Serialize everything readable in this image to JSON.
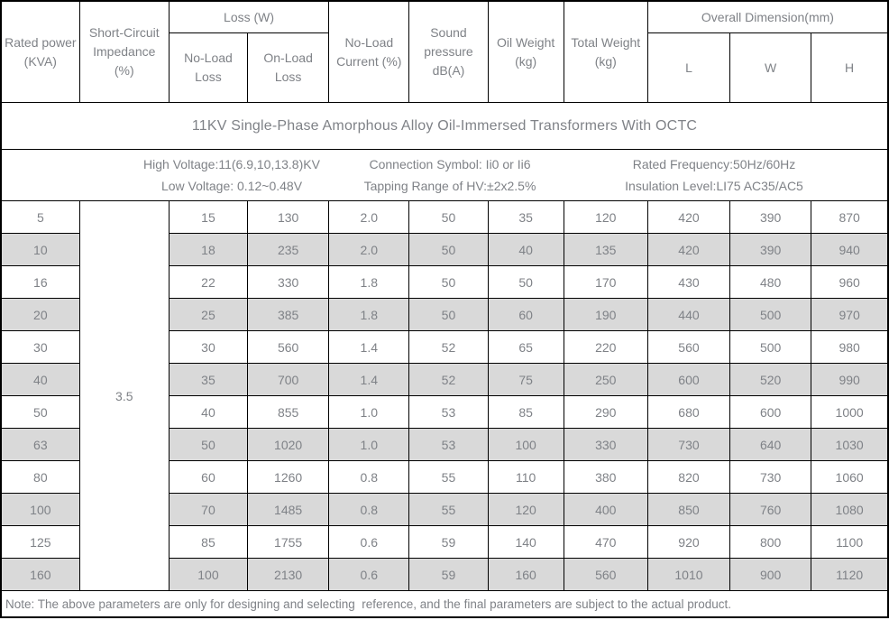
{
  "title": "11KV Single-Phase Amorphous Alloy Oil-Immersed Transformers With OCTC",
  "specs": [
    {
      "lines": [
        "High Voltage:11(6.9,10,13.8)KV",
        "Low Voltage: 0.12~0.48V"
      ]
    },
    {
      "lines": [
        "Connection Symbol: Ii0 or Ii6",
        "Tapping Range of HV:±2x2.5%"
      ]
    },
    {
      "lines": [
        "Rated Frequency:50Hz/60Hz",
        "Insulation Level:LI75 AC35/AC5"
      ]
    }
  ],
  "table": {
    "headers": {
      "rated_power": "Rated power (KVA)",
      "short_circuit": "Short-Circuit Impedance (%)",
      "loss_group": "Loss (W)",
      "no_load_loss": "No-Load Loss",
      "on_load_loss": "On-Load Loss",
      "no_load_current": "No-Load Current (%)",
      "sound_pressure": "Sound pressure dB(A)",
      "oil_weight": "Oil Weight (kg)",
      "total_weight": "Total Weight (kg)",
      "overall_group": "Overall Dimension(mm)",
      "dim_l": "L",
      "dim_w": "W",
      "dim_h": "H"
    },
    "impedance": "3.5",
    "rows": [
      [
        "5",
        "15",
        "130",
        "2.0",
        "50",
        "35",
        "120",
        "420",
        "390",
        "870"
      ],
      [
        "10",
        "18",
        "235",
        "2.0",
        "50",
        "40",
        "135",
        "420",
        "390",
        "940"
      ],
      [
        "16",
        "22",
        "330",
        "1.8",
        "50",
        "50",
        "170",
        "430",
        "480",
        "960"
      ],
      [
        "20",
        "25",
        "385",
        "1.8",
        "50",
        "60",
        "190",
        "440",
        "500",
        "970"
      ],
      [
        "30",
        "30",
        "560",
        "1.4",
        "52",
        "65",
        "220",
        "560",
        "500",
        "980"
      ],
      [
        "40",
        "35",
        "700",
        "1.4",
        "52",
        "75",
        "250",
        "600",
        "520",
        "990"
      ],
      [
        "50",
        "40",
        "855",
        "1.0",
        "53",
        "85",
        "290",
        "680",
        "600",
        "1000"
      ],
      [
        "63",
        "50",
        "1020",
        "1.0",
        "53",
        "100",
        "330",
        "730",
        "640",
        "1030"
      ],
      [
        "80",
        "60",
        "1260",
        "0.8",
        "55",
        "110",
        "380",
        "820",
        "730",
        "1060"
      ],
      [
        "100",
        "70",
        "1485",
        "0.8",
        "55",
        "120",
        "400",
        "850",
        "760",
        "1080"
      ],
      [
        "125",
        "85",
        "1755",
        "0.6",
        "59",
        "140",
        "470",
        "920",
        "800",
        "1100"
      ],
      [
        "160",
        "100",
        "2130",
        "0.6",
        "59",
        "160",
        "560",
        "1010",
        "900",
        "1120"
      ]
    ]
  },
  "note": "Note: The above parameters are only for designing and selecting  reference, and the final parameters are subject to the actual product.",
  "colors": {
    "border": "#000000",
    "text_gray": "#7f8287",
    "stripe_gray": "#d9d9d9",
    "background": "#ffffff"
  }
}
